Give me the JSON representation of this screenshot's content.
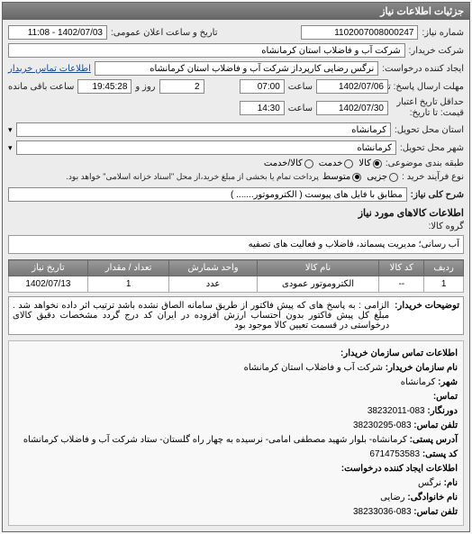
{
  "panel_title": "جزئیات اطلاعات نیاز",
  "fields": {
    "request_no_label": "شماره نیاز:",
    "request_no": "1102007008000247",
    "announce_label": "تاریخ و ساعت اعلان عمومی:",
    "announce_value": "1402/07/03 - 11:08",
    "buyer_label": "شرکت خریدار:",
    "buyer_value": "شرکت آب و فاضلاب استان کرمانشاه",
    "requester_label": "ایجاد کننده درخواست:",
    "requester_value": "نرگس رضایی کارپرداز شرکت آب و فاضلاب استان کرمانشاه",
    "contact_link": "اطلاعات تماس خریدار",
    "deadline_label": "مهلت ارسال پاسخ: تا",
    "deadline_date": "1402/07/06",
    "time_label": "ساعت",
    "deadline_time": "07:00",
    "remain_day": "2",
    "remain_day_label": "روز و",
    "remain_time": "19:45:28",
    "remain_time_label": "ساعت باقی مانده",
    "validity_label": "حداقل تاریخ اعتبار\nقیمت: تا تاریخ:",
    "validity_date": "1402/07/30",
    "validity_time": "14:30",
    "province_label": "استان محل تحویل:",
    "province_value": "کرمانشاه",
    "city_label": "شهر محل تحویل:",
    "city_value": "کرمانشاه",
    "category_label": "طبقه بندی موضوعی:",
    "cat_goods": "کالا",
    "cat_service": "خدمت",
    "cat_both": "کالا/خدمت",
    "buy_type_label": "نوع فرآیند خرید :",
    "buy_small": "جزیی",
    "buy_medium": "متوسط",
    "buy_note": "پرداخت تمام یا بخشی از مبلغ خرید،از محل  \"اسناد خزانه اسلامی\"  خواهد بود.",
    "desc_label": "شرح کلی نیاز:",
    "desc_value": "مطابق با فایل های پیوست ( الکتروموتور....... )",
    "goods_info_title": "اطلاعات کالاهای مورد نیاز",
    "goods_cat_label": "گروه کالا:",
    "goods_cat_value": "آب رسانی؛ مدیریت پسماند، فاضلاب و فعالیت های تصفیه"
  },
  "table": {
    "columns": [
      "ردیف",
      "کد کالا",
      "نام کالا",
      "واحد شمارش",
      "تعداد / مقدار",
      "تاریخ نیاز"
    ],
    "rows": [
      [
        "1",
        "--",
        "الکتروموتور عمودی",
        "عدد",
        "1",
        "1402/07/13"
      ]
    ]
  },
  "notes": {
    "label": "توضیحات خریدار:",
    "text": "الزامی : به پاسخ های که پیش فاکتور از طریق سامانه الصاق نشده باشد ترتیب اثر داده نخواهد شد .  مبلغ کل پیش فاکتور بدون احتساب ارزش افزوده در ایران کد درج گردد مشخصات دقیق کالای درخواستی در قسمت تعیین کالا موجود بود"
  },
  "contact": {
    "title": "اطلاعات تماس سازمان خریدار:",
    "org_label": "نام سازمان خریدار:",
    "org": "شرکت آب و فاضلاب استان کرمانشاه",
    "city_label": "شهر:",
    "city": "کرمانشاه",
    "phones_label": "تماس:",
    "fax_label": "دورنگار:",
    "fax": "083-38232011",
    "phone_label": "تلفن تماس:",
    "phone": "083-38230295",
    "addr_label": "آدرس پستی:",
    "addr": "کرمانشاه- بلوار شهید مصطفی امامی- نرسیده به چهار راه گلستان- ستاد شرکت آب و فاضلاب کرمانشاه",
    "postal_label": "کد پستی:",
    "postal": "6714753583",
    "req_contact_title": "اطلاعات ایجاد کننده درخواست:",
    "name_label": "نام:",
    "name": "نرگس",
    "family_label": "نام خانوادگی:",
    "family": "رضایی",
    "tel_label": "تلفن تماس:",
    "tel": "083-38233036"
  }
}
